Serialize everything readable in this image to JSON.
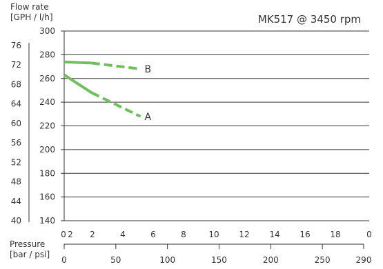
{
  "chart_data": {
    "type": "line",
    "title": "MK517 @ 3450 rpm",
    "ylabel_lines": [
      "Flow rate",
      "[GPH / l/h]"
    ],
    "xlabel_lines": [
      "Pressure",
      "[bar / psi]"
    ],
    "y_lph": {
      "ticks": [
        300,
        280,
        260,
        240,
        220,
        200,
        180,
        160,
        140
      ],
      "range": [
        140,
        300
      ]
    },
    "y_gph": {
      "ticks": [
        76,
        72,
        68,
        64,
        60,
        56,
        52,
        48,
        44,
        40
      ]
    },
    "x_bar": {
      "ticks": [
        "0",
        "2",
        "2",
        "4",
        "6",
        "8",
        "10",
        "12",
        "14",
        "16",
        "18",
        "0"
      ],
      "range": [
        0,
        20
      ]
    },
    "x_psi": {
      "ticks": [
        0,
        50,
        100,
        150,
        200,
        250,
        290
      ],
      "range": [
        0,
        290
      ]
    },
    "series": [
      {
        "name": "A",
        "color": "#6ec15a",
        "points": [
          [
            0,
            263
          ],
          [
            1.8,
            248
          ],
          [
            5.0,
            228
          ]
        ],
        "solid_until": 1.8
      },
      {
        "name": "B",
        "color": "#6ec15a",
        "points": [
          [
            0,
            274
          ],
          [
            1.8,
            273
          ],
          [
            5.0,
            268
          ]
        ],
        "solid_until": 1.8
      }
    ],
    "grid": true
  }
}
